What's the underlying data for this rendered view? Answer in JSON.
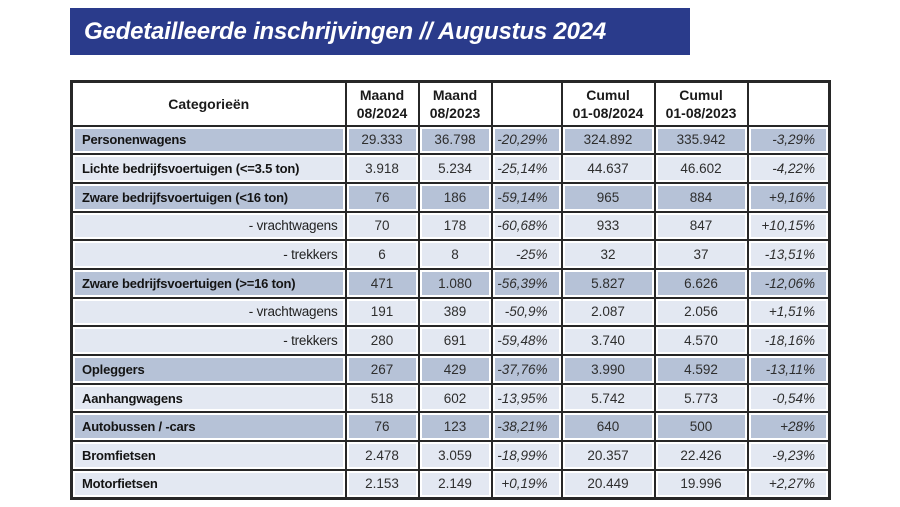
{
  "title": "Gedetailleerde inschrijvingen // Augustus 2024",
  "colors": {
    "banner_bg": "#2a3b8b",
    "banner_text": "#ffffff",
    "row_dark": "#b6c2d7",
    "row_light": "#e3e8f2",
    "grid_border": "#272727"
  },
  "table": {
    "headers": [
      {
        "l1": "Categorieën",
        "l2": ""
      },
      {
        "l1": "Maand",
        "l2": "08/2024"
      },
      {
        "l1": "Maand",
        "l2": "08/2023"
      },
      {
        "l1": "",
        "l2": ""
      },
      {
        "l1": "Cumul",
        "l2": "01-08/2024"
      },
      {
        "l1": "Cumul",
        "l2": "01-08/2023"
      },
      {
        "l1": "",
        "l2": ""
      }
    ],
    "rows": [
      {
        "label": "Personenwagens",
        "shade": "dark",
        "sub": false,
        "values": [
          "29.333",
          "36.798",
          "-20,29%",
          "324.892",
          "335.942",
          "-3,29%"
        ]
      },
      {
        "label": "Lichte bedrijfsvoertuigen (<=3.5 ton)",
        "shade": "light",
        "sub": false,
        "values": [
          "3.918",
          "5.234",
          "-25,14%",
          "44.637",
          "46.602",
          "-4,22%"
        ]
      },
      {
        "label": "Zware bedrijfsvoertuigen (<16 ton)",
        "shade": "dark",
        "sub": false,
        "values": [
          "76",
          "186",
          "-59,14%",
          "965",
          "884",
          "+9,16%"
        ]
      },
      {
        "label": "- vrachtwagens",
        "shade": "light",
        "sub": true,
        "values": [
          "70",
          "178",
          "-60,68%",
          "933",
          "847",
          "+10,15%"
        ]
      },
      {
        "label": "- trekkers",
        "shade": "light",
        "sub": true,
        "values": [
          "6",
          "8",
          "-25%",
          "32",
          "37",
          "-13,51%"
        ]
      },
      {
        "label": "Zware bedrijfsvoertuigen (>=16 ton)",
        "shade": "dark",
        "sub": false,
        "values": [
          "471",
          "1.080",
          "-56,39%",
          "5.827",
          "6.626",
          "-12,06%"
        ]
      },
      {
        "label": "- vrachtwagens",
        "shade": "light",
        "sub": true,
        "values": [
          "191",
          "389",
          "-50,9%",
          "2.087",
          "2.056",
          "+1,51%"
        ]
      },
      {
        "label": "- trekkers",
        "shade": "light",
        "sub": true,
        "values": [
          "280",
          "691",
          "-59,48%",
          "3.740",
          "4.570",
          "-18,16%"
        ]
      },
      {
        "label": "Opleggers",
        "shade": "dark",
        "sub": false,
        "values": [
          "267",
          "429",
          "-37,76%",
          "3.990",
          "4.592",
          "-13,11%"
        ]
      },
      {
        "label": "Aanhangwagens",
        "shade": "light",
        "sub": false,
        "values": [
          "518",
          "602",
          "-13,95%",
          "5.742",
          "5.773",
          "-0,54%"
        ]
      },
      {
        "label": "Autobussen / -cars",
        "shade": "dark",
        "sub": false,
        "values": [
          "76",
          "123",
          "-38,21%",
          "640",
          "500",
          "+28%"
        ]
      },
      {
        "label": "Bromfietsen",
        "shade": "light",
        "sub": false,
        "values": [
          "2.478",
          "3.059",
          "-18,99%",
          "20.357",
          "22.426",
          "-9,23%"
        ]
      },
      {
        "label": "Motorfietsen",
        "shade": "light",
        "sub": false,
        "values": [
          "2.153",
          "2.149",
          "+0,19%",
          "20.449",
          "19.996",
          "+2,27%"
        ]
      }
    ]
  }
}
